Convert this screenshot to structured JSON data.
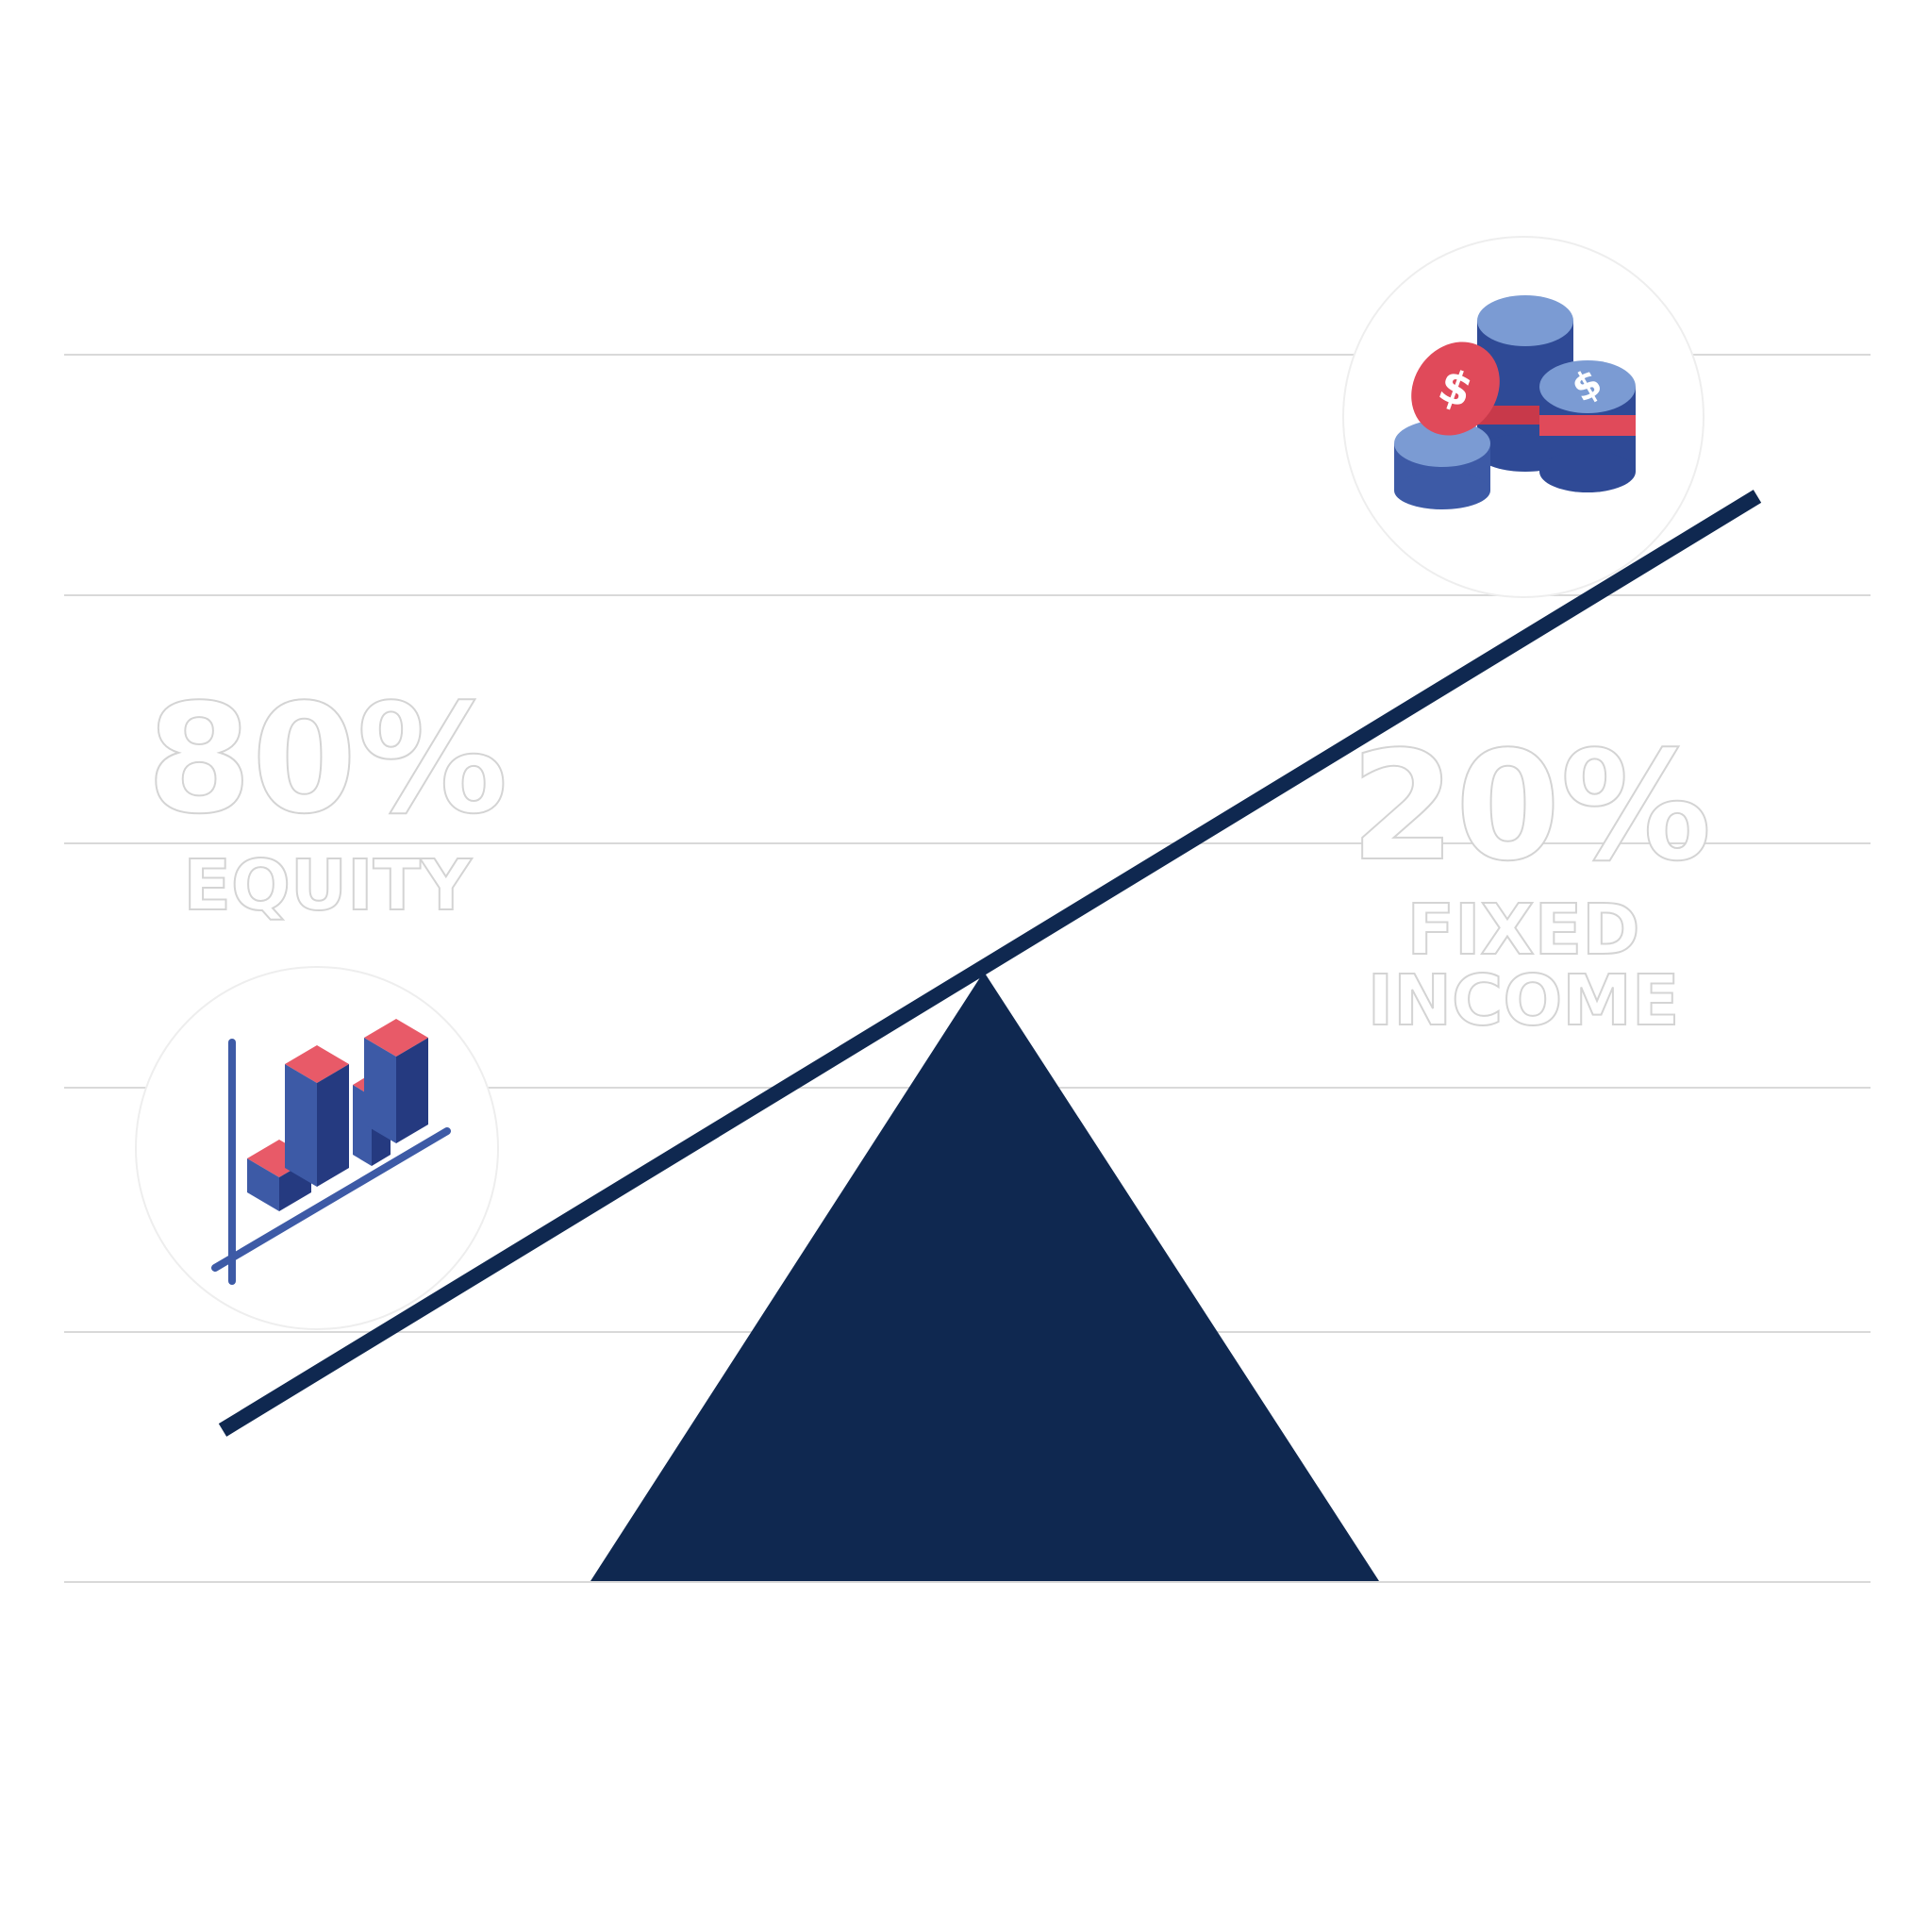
{
  "colors": {
    "fulcrum": "#0f2850",
    "beam": "#0f2850",
    "guideline": "#d9d9d9",
    "accent_red": "#e04a5a",
    "accent_blue": "#3d5aa6",
    "light_blue": "#7b9bd3"
  },
  "left": {
    "percent": "80%",
    "label": "EQUITY",
    "icon": "bar-chart-icon"
  },
  "right": {
    "percent": "20%",
    "label_line1": "FIXED",
    "label_line2": "INCOME",
    "icon": "coin-stacks-icon"
  }
}
